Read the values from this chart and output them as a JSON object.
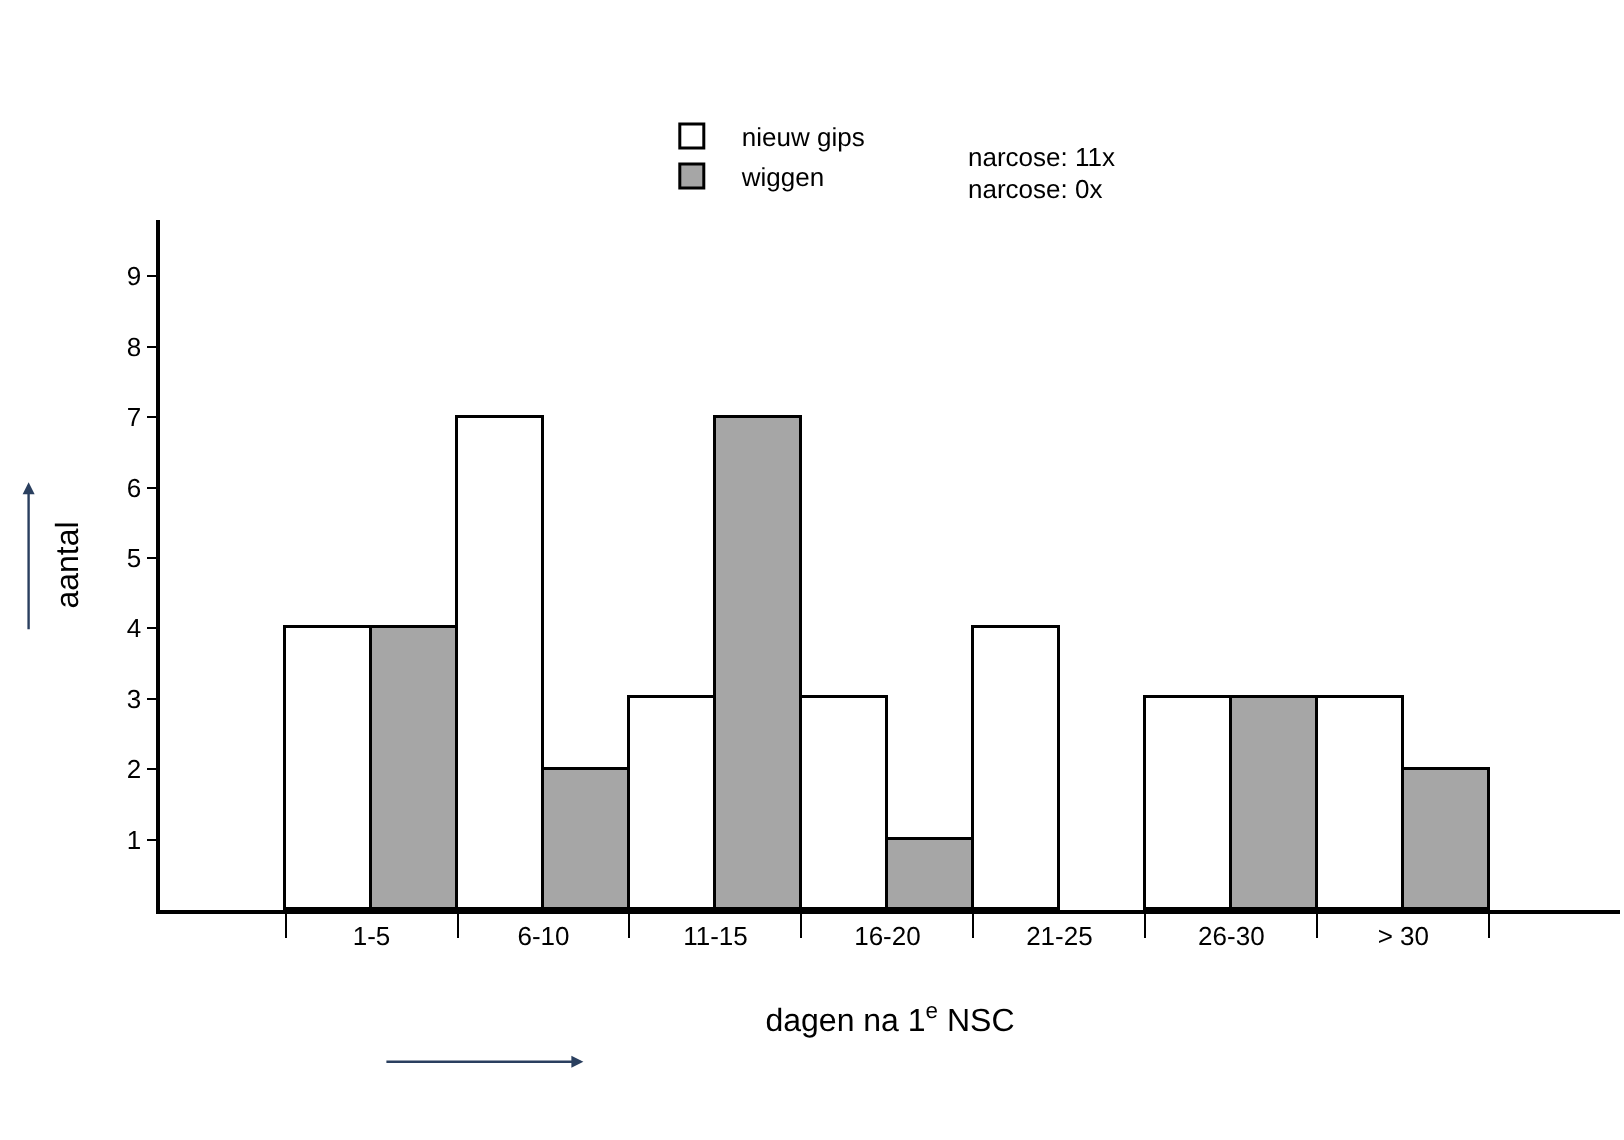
{
  "chart_data": {
    "type": "bar",
    "xlabel": "dagen na 1$^{e}$ NSC",
    "ylabel": "aantal",
    "categories": [
      "1-5",
      "6-10",
      "11-15",
      "16-20",
      "21-25",
      "26-30",
      "> 30"
    ],
    "series": [
      {
        "name": "nieuw gips",
        "color": "#ffffff",
        "values": [
          4,
          7,
          3,
          3,
          4,
          3,
          3
        ]
      },
      {
        "name": "wiggen",
        "color": "#a6a6a6",
        "values": [
          4,
          2,
          7,
          1,
          0,
          3,
          2
        ]
      }
    ],
    "ylim": [
      0,
      9.8
    ],
    "yticks": [
      1,
      2,
      3,
      4,
      5,
      6,
      7,
      8,
      9
    ],
    "legend": "top",
    "annotations": [
      "narcose: 11x",
      "narcose: 0x"
    ]
  }
}
